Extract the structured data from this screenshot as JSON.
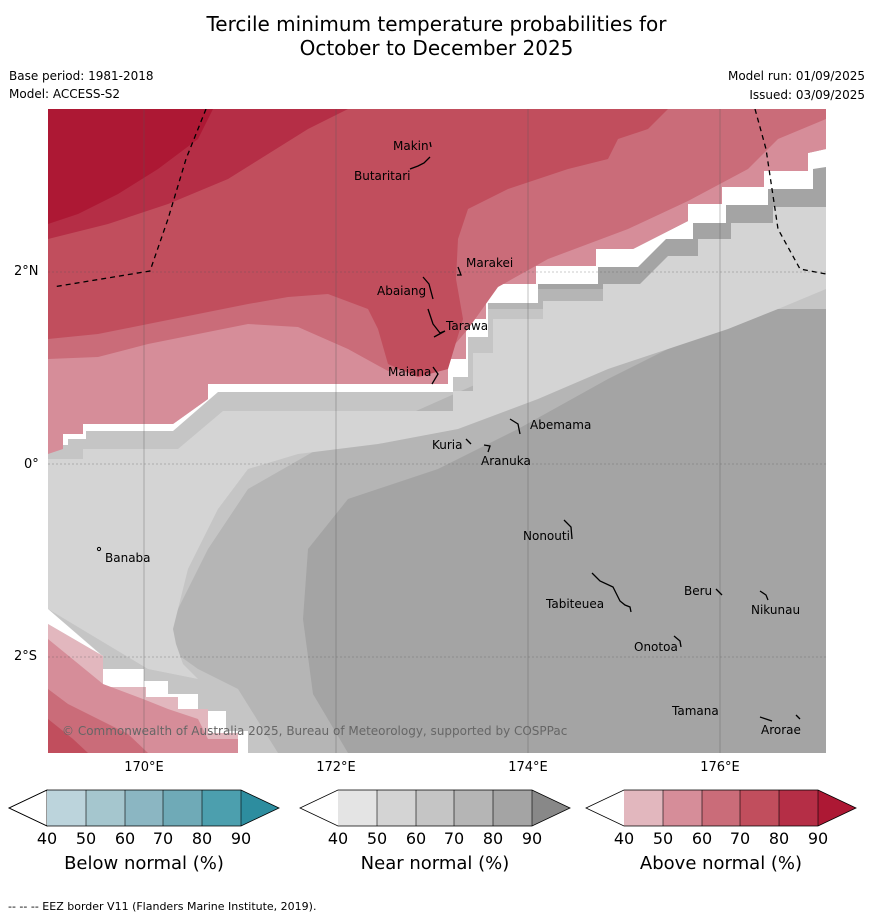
{
  "title_line1": "Tercile minimum temperature probabilities for",
  "title_line2": "October to December 2025",
  "base_period": "Base period: 1981-2018",
  "model": "Model: ACCESS-S2",
  "model_run": "Model run: 01/09/2025",
  "issued": "Issued: 03/09/2025",
  "lat_labels": [
    "2°N",
    "0°",
    "2°S"
  ],
  "lon_labels": [
    "170°E",
    "172°E",
    "174°E",
    "176°E"
  ],
  "places": [
    "Makin",
    "Butaritari",
    "Marakei",
    "Abaiang",
    "Tarawa",
    "Maiana",
    "Abemama",
    "Kuria",
    "Aranuka",
    "Banaba",
    "Nonouti",
    "Beru",
    "Tabiteuea",
    "Nikunau",
    "Onotoa",
    "Tamana",
    "Arorae"
  ],
  "copyright": "© Commonwealth of Australia 2025, Bureau of Meteorology, supported by COSPPac",
  "footnote": "--  --  -- EEZ border V11 (Flanders Marine Institute, 2019).",
  "colorbars": [
    {
      "label": "Below normal (%)",
      "ticks": [
        "40",
        "50",
        "60",
        "70",
        "80",
        "90"
      ],
      "colors": [
        "#bcd4dc",
        "#a5c6ce",
        "#8bb6c2",
        "#6faab7",
        "#4c9fae",
        "#2d8d9f"
      ]
    },
    {
      "label": "Near normal (%)",
      "ticks": [
        "40",
        "50",
        "60",
        "70",
        "80",
        "90"
      ],
      "colors": [
        "#e4e4e4",
        "#d4d4d4",
        "#c5c5c5",
        "#b5b5b5",
        "#a4a4a4",
        "#888888"
      ]
    },
    {
      "label": "Above normal (%)",
      "ticks": [
        "40",
        "50",
        "60",
        "70",
        "80",
        "90"
      ],
      "colors": [
        "#e2b7be",
        "#d68d99",
        "#ca6c79",
        "#c14e5d",
        "#b52e46",
        "#ad1834"
      ]
    }
  ]
}
